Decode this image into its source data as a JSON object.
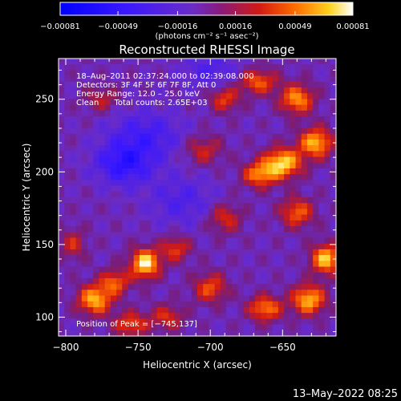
{
  "chart_data": {
    "type": "heatmap",
    "title": "Reconstructed RHESSI Image",
    "xlabel": "Heliocentric X (arcsec)",
    "ylabel": "Heliocentric Y (arcsec)",
    "xlim": [
      -805,
      -613
    ],
    "ylim": [
      87,
      278
    ],
    "x_ticks": [
      -800,
      -750,
      -700,
      -650
    ],
    "x_tick_labels": [
      "−800",
      "−750",
      "−700",
      "−650"
    ],
    "y_ticks": [
      100,
      150,
      200,
      250
    ],
    "y_tick_labels": [
      "100",
      "150",
      "200",
      "250"
    ],
    "colorbar": {
      "range": [
        -0.00081,
        0.00081
      ],
      "ticks": [
        -0.00081,
        -0.00049,
        -0.00016,
        0.00016,
        0.00049,
        0.00081
      ],
      "tick_labels": [
        "−0.00081",
        "−0.00049",
        "−0.00016",
        "0.00016",
        "0.00049",
        "0.00081"
      ],
      "unit_label": "(photons cm⁻² s⁻¹ asec⁻²)"
    },
    "annotations": [
      "18–Aug–2011 02:37:24.000 to 02:39:08.000",
      "Detectors: 3F 4F 5F 6F 7F 8F, Att 0",
      "Energy Range: 12.0 – 25.0 keV",
      "Clean      Total counts: 2.65E+03"
    ],
    "peak_label": "Position of Peak = [−745,137]",
    "peak": [
      -745,
      137
    ],
    "sources": [
      {
        "x": -745,
        "y": 137,
        "amp": 1.0,
        "sx": 7,
        "sy": 7
      },
      {
        "x": -780,
        "y": 112,
        "amp": 0.85,
        "sx": 8,
        "sy": 7
      },
      {
        "x": -766,
        "y": 124,
        "amp": 0.6,
        "sx": 7,
        "sy": 6
      },
      {
        "x": -724,
        "y": 147,
        "amp": 0.5,
        "sx": 7,
        "sy": 6
      },
      {
        "x": -650,
        "y": 206,
        "amp": 0.95,
        "sx": 9,
        "sy": 7
      },
      {
        "x": -666,
        "y": 198,
        "amp": 0.7,
        "sx": 8,
        "sy": 6
      },
      {
        "x": -627,
        "y": 220,
        "amp": 0.85,
        "sx": 8,
        "sy": 7
      },
      {
        "x": -640,
        "y": 250,
        "amp": 0.75,
        "sx": 8,
        "sy": 7
      },
      {
        "x": -667,
        "y": 262,
        "amp": 0.6,
        "sx": 9,
        "sy": 6
      },
      {
        "x": -690,
        "y": 250,
        "amp": 0.5,
        "sx": 7,
        "sy": 6
      },
      {
        "x": -620,
        "y": 140,
        "amp": 0.9,
        "sx": 7,
        "sy": 7
      },
      {
        "x": -632,
        "y": 112,
        "amp": 0.85,
        "sx": 8,
        "sy": 7
      },
      {
        "x": -662,
        "y": 106,
        "amp": 0.7,
        "sx": 8,
        "sy": 6
      },
      {
        "x": -700,
        "y": 120,
        "amp": 0.55,
        "sx": 8,
        "sy": 7
      },
      {
        "x": -690,
        "y": 168,
        "amp": 0.45,
        "sx": 8,
        "sy": 7
      },
      {
        "x": -640,
        "y": 172,
        "amp": 0.6,
        "sx": 8,
        "sy": 7
      },
      {
        "x": -705,
        "y": 215,
        "amp": 0.4,
        "sx": 9,
        "sy": 7
      },
      {
        "x": -755,
        "y": 95,
        "amp": 0.55,
        "sx": 8,
        "sy": 6
      },
      {
        "x": -795,
        "y": 150,
        "amp": 0.4,
        "sx": 6,
        "sy": 7
      },
      {
        "x": -775,
        "y": 250,
        "amp": 0.35,
        "sx": 8,
        "sy": 6
      },
      {
        "x": -730,
        "y": 100,
        "amp": 0.45,
        "sx": 8,
        "sy": 6
      },
      {
        "x": -760,
        "y": 205,
        "amp": -0.55,
        "sx": 14,
        "sy": 10
      },
      {
        "x": -745,
        "y": 225,
        "amp": -0.4,
        "sx": 18,
        "sy": 12
      },
      {
        "x": -720,
        "y": 180,
        "amp": -0.3,
        "sx": 16,
        "sy": 12
      },
      {
        "x": -700,
        "y": 270,
        "amp": -0.3,
        "sx": 14,
        "sy": 8
      }
    ]
  },
  "footer": {
    "timestamp": "13–May–2022 08:25"
  }
}
